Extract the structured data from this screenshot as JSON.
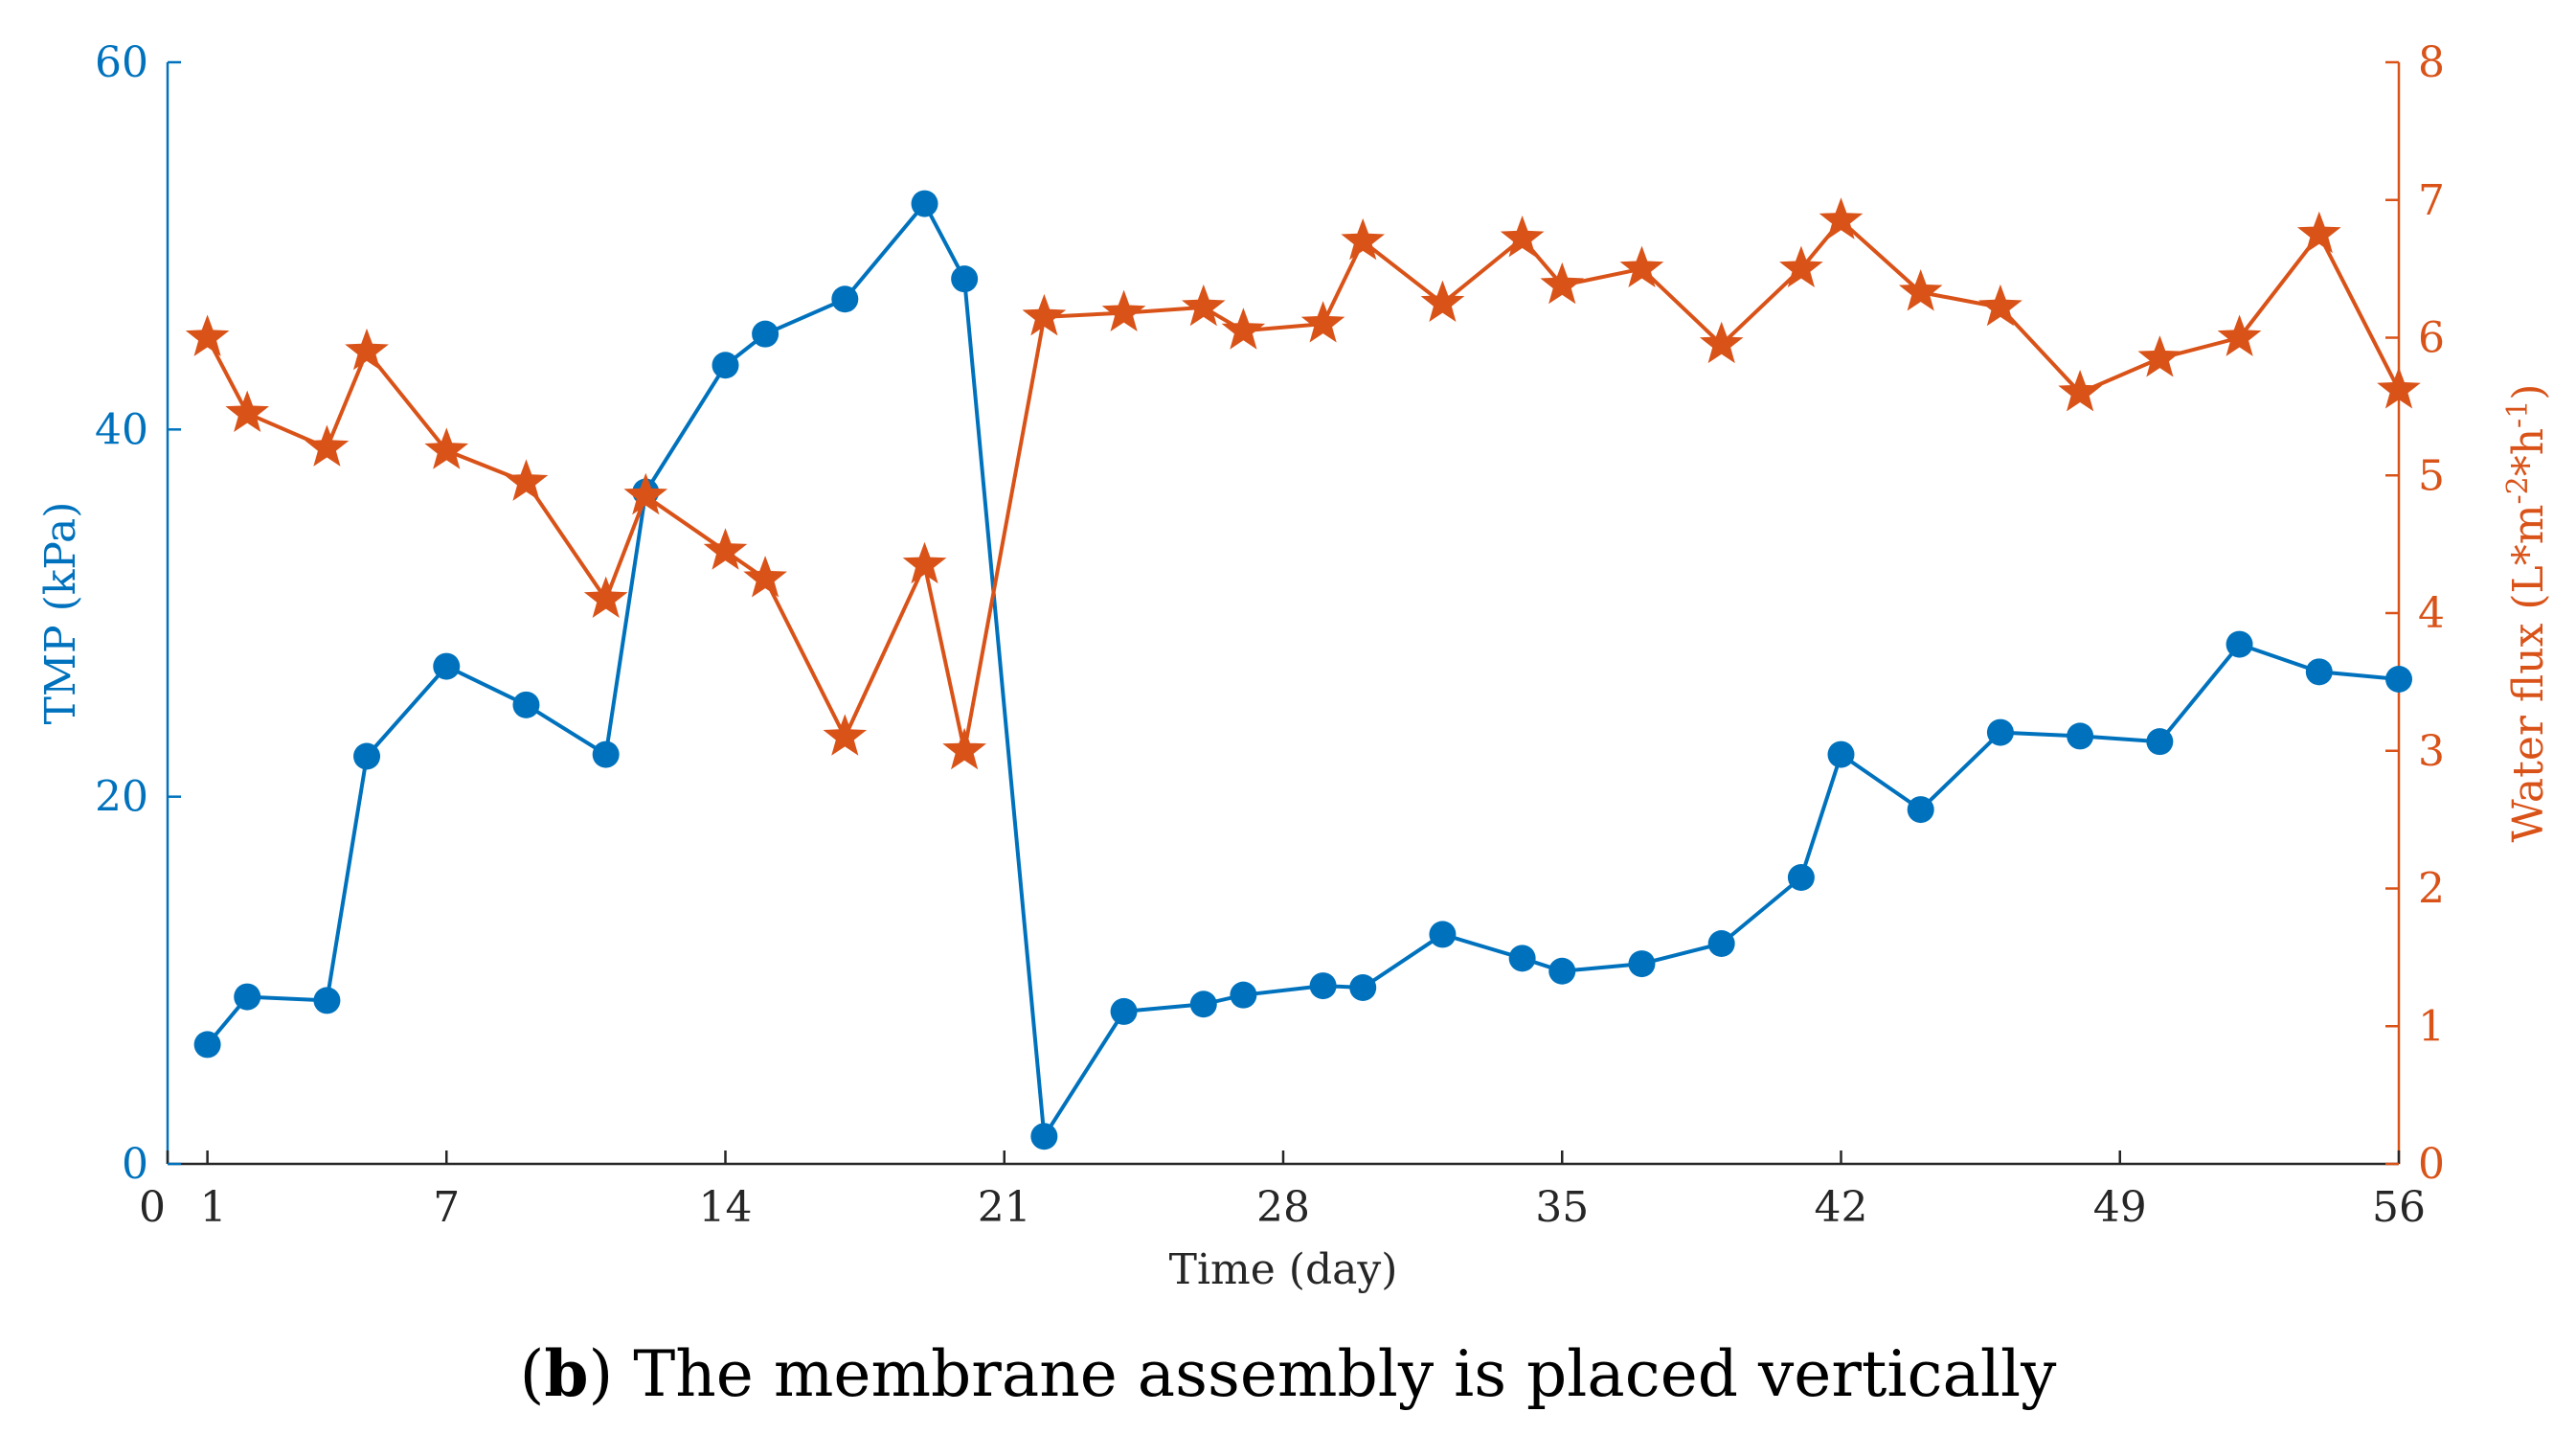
{
  "chart_data": {
    "type": "line",
    "xlabel": "Time (day)",
    "x_ticks": [
      "0",
      "1",
      "7",
      "14",
      "21",
      "28",
      "35",
      "42",
      "49",
      "56"
    ],
    "xlim": [
      0,
      56
    ],
    "left_axis": {
      "label": "TMP (kPa)",
      "ylim": [
        0,
        60
      ],
      "ticks": [
        "0",
        "20",
        "40",
        "60"
      ],
      "color": "#0072BD"
    },
    "right_axis": {
      "label": "Water flux (L*m",
      "label_sup1": "-2",
      "label_mid": "*h",
      "label_sup2": "-1",
      "label_end": ")",
      "ylim": [
        0,
        8
      ],
      "ticks": [
        "0",
        "1",
        "2",
        "3",
        "4",
        "5",
        "6",
        "7",
        "8"
      ],
      "color": "#D95319"
    },
    "series": [
      {
        "name": "TMP",
        "axis": "left",
        "marker": "circle",
        "color": "#0072BD",
        "x": [
          1,
          2,
          4,
          5,
          7,
          9,
          11,
          12,
          14,
          15,
          17,
          19,
          20,
          22,
          24,
          26,
          27,
          29,
          30,
          32,
          34,
          35,
          37,
          39,
          41,
          42,
          44,
          46,
          48,
          50,
          52,
          54,
          56
        ],
        "y": [
          6.5,
          9.1,
          8.9,
          22.2,
          27.1,
          25.0,
          22.3,
          36.6,
          43.5,
          45.2,
          47.1,
          52.3,
          48.2,
          1.5,
          8.3,
          8.7,
          9.2,
          9.7,
          9.6,
          12.5,
          11.2,
          10.5,
          10.9,
          12.0,
          15.6,
          22.3,
          19.3,
          23.5,
          23.3,
          23.0,
          28.3,
          26.8,
          26.4
        ]
      },
      {
        "name": "Water flux",
        "axis": "right",
        "marker": "star",
        "color": "#D95319",
        "x": [
          1,
          2,
          4,
          5,
          7,
          9,
          11,
          12,
          14,
          15,
          17,
          19,
          20,
          22,
          24,
          26,
          27,
          29,
          30,
          32,
          34,
          35,
          37,
          39,
          41,
          42,
          44,
          46,
          48,
          50,
          52,
          54,
          56
        ],
        "y": [
          6.0,
          5.45,
          5.2,
          5.9,
          5.18,
          4.95,
          4.1,
          4.85,
          4.45,
          4.25,
          3.1,
          4.35,
          3.0,
          6.15,
          6.18,
          6.22,
          6.05,
          6.1,
          6.7,
          6.25,
          6.72,
          6.38,
          6.5,
          5.95,
          6.5,
          6.85,
          6.33,
          6.22,
          5.6,
          5.85,
          6.0,
          6.75,
          5.62
        ]
      }
    ]
  },
  "caption": {
    "bold": "b",
    "text": " The membrane assembly is placed vertically"
  }
}
